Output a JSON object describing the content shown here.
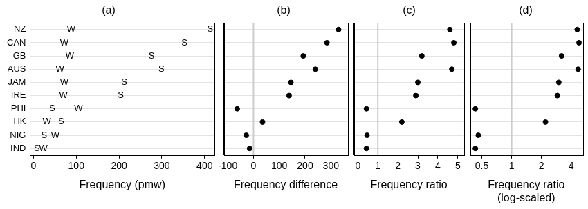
{
  "chart_data": [
    {
      "type": "scatter",
      "title": "(a)",
      "x_label": "Frequency (pmw)",
      "categories": [
        "NZ",
        "CAN",
        "GB",
        "AUS",
        "JAM",
        "IRE",
        "PHI",
        "HK",
        "NIG",
        "IND"
      ],
      "series": [
        {
          "name": "W",
          "color": "#000000",
          "marker": "letter",
          "values": [
            88,
            72,
            85,
            62,
            72,
            70,
            105,
            31,
            51,
            23
          ]
        },
        {
          "name": "S",
          "color": "#000000",
          "marker": "letter",
          "values": [
            413,
            353,
            276,
            299,
            212,
            204,
            44,
            65,
            25,
            8
          ]
        }
      ],
      "xlim": [
        -8,
        423
      ],
      "xticks": [
        0,
        100,
        200,
        300,
        400
      ],
      "grid": true
    },
    {
      "type": "scatter",
      "title": "(b)",
      "x_label": "Frequency difference",
      "categories": [
        "NZ",
        "CAN",
        "GB",
        "AUS",
        "JAM",
        "IRE",
        "PHI",
        "HK",
        "NIG",
        "IND"
      ],
      "values": [
        330,
        285,
        193,
        240,
        145,
        138,
        -63,
        35,
        -28,
        -15
      ],
      "color": "#000000",
      "marker": "circle",
      "xlim": [
        -115,
        365
      ],
      "xticks": [
        -100,
        0,
        100,
        200,
        300
      ],
      "ref_x": 0,
      "grid": true,
      "tick_labels": "x"
    },
    {
      "type": "scatter",
      "title": "(c)",
      "x_label": "Frequency ratio",
      "categories": [
        "NZ",
        "CAN",
        "GB",
        "AUS",
        "JAM",
        "IRE",
        "PHI",
        "HK",
        "NIG",
        "IND"
      ],
      "values": [
        4.6,
        4.8,
        3.2,
        4.7,
        3.0,
        2.9,
        0.43,
        2.2,
        0.46,
        0.43
      ],
      "color": "#000000",
      "marker": "circle",
      "xlim": [
        -0.2,
        5.3
      ],
      "xticks": [
        0,
        1,
        2,
        3,
        4,
        5
      ],
      "ref_x": 1,
      "grid": true,
      "tick_labels": "x"
    },
    {
      "type": "scatter",
      "title": "(d)",
      "x_label": [
        "Frequency ratio",
        "(log-scaled)"
      ],
      "categories": [
        "NZ",
        "CAN",
        "GB",
        "AUS",
        "JAM",
        "IRE",
        "PHI",
        "HK",
        "NIG",
        "IND"
      ],
      "values": [
        4.6,
        4.8,
        3.2,
        4.7,
        3.0,
        2.9,
        0.43,
        2.2,
        0.46,
        0.43
      ],
      "color": "#000000",
      "marker": "circle",
      "xlim": [
        0.38,
        5.2
      ],
      "xticks": [
        0.5,
        1,
        2,
        4
      ],
      "ref_x": 1,
      "log": "x",
      "grid": true,
      "tick_labels": "x"
    }
  ]
}
